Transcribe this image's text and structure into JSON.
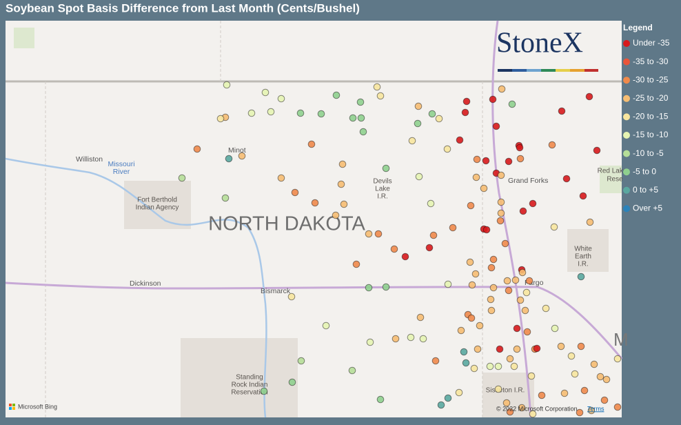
{
  "title": "Soybean Spot Basis Difference from Last Month (Cents/Bushel)",
  "legend": {
    "title": "Legend",
    "items": [
      {
        "label": "Under -35",
        "color": "#d7191c"
      },
      {
        "label": "-35 to -30",
        "color": "#e8553a"
      },
      {
        "label": "-30 to -25",
        "color": "#f08a4b"
      },
      {
        "label": "-25 to -20",
        "color": "#f6bd72"
      },
      {
        "label": "-20 to -15",
        "color": "#f7e59e"
      },
      {
        "label": "-15 to -10",
        "color": "#e6f4b2"
      },
      {
        "label": "-10 to -5",
        "color": "#b6de98"
      },
      {
        "label": "-5 to 0",
        "color": "#8fd08e"
      },
      {
        "label": "0 to +5",
        "color": "#5aa8a0"
      },
      {
        "label": "Over +5",
        "color": "#2b83ba"
      }
    ]
  },
  "map": {
    "logo": "StoneX",
    "state": "NORTH DAKOTA",
    "places": [
      "Williston",
      "Minot",
      "Grand Forks",
      "Dickinson",
      "Bismarck",
      "Fargo"
    ],
    "water": [
      "Missouri",
      "River"
    ],
    "areas": {
      "fort_berthold": [
        "Fort Berthold",
        "Indian Agency"
      ],
      "devils_lake": [
        "Devils",
        "Lake",
        "I.R."
      ],
      "red_lake": [
        "Red Lake",
        "Rese"
      ],
      "white_earth": [
        "White",
        "Earth",
        "I.R."
      ],
      "standing_rock": [
        "Standing",
        "Rock Indian",
        "Reservation"
      ],
      "sisseton": "Sisseton I.R.",
      "minnesota": "M"
    },
    "bing": "Microsoft Bing",
    "attribution": "© 2022 Microsoft Corporation",
    "terms": "Terms"
  }
}
